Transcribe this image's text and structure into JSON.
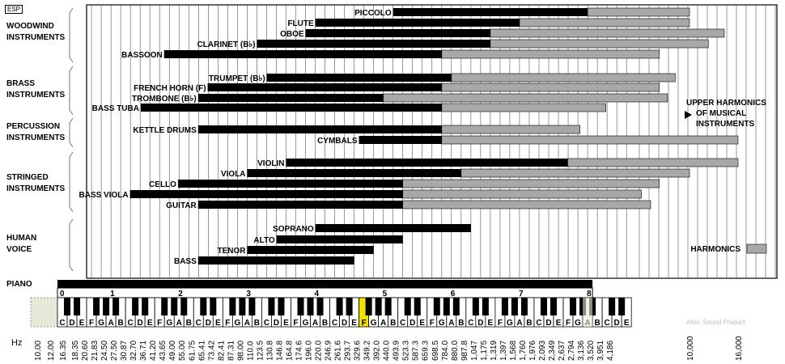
{
  "logo": "ESP",
  "credit": "Altec Sound Product",
  "hz_label": "Hz",
  "piano_label": "PIANO",
  "harmonics_label": "HARMONICS",
  "upper_note": [
    "UPPER HARMONICS",
    "OF MUSICAL",
    "INSTRUMENTS"
  ],
  "groups": [
    {
      "name": "WOODWIND INSTRUMENTS",
      "lines": [
        "WOODWIND",
        "INSTRUMENTS"
      ]
    },
    {
      "name": "BRASS INSTRUMENTS",
      "lines": [
        "BRASS",
        "INSTRUMENTS"
      ]
    },
    {
      "name": "PERCUSSION INSTRUMENTS",
      "lines": [
        "PERCUSSION",
        "INSTRUMENTS"
      ]
    },
    {
      "name": "STRINGED INSTRUMENTS",
      "lines": [
        "STRINGED",
        "INSTRUMENTS"
      ]
    },
    {
      "name": "HUMAN VOICE",
      "lines": [
        "HUMAN",
        "VOICE"
      ]
    }
  ],
  "colors": {
    "fundamental": "#000000",
    "harmonics": "#a8a8a8",
    "highlight": "#f2e000",
    "grid": "#000000"
  },
  "chart_data": {
    "type": "bar",
    "orientation": "horizontal",
    "x_scale": "log",
    "xlim": [
      10,
      20000
    ],
    "x_unit": "Hz",
    "series_names": [
      "fundamental",
      "harmonics"
    ],
    "instruments": [
      {
        "name": "PICCOLO",
        "group": "WOODWIND INSTRUMENTS",
        "low": 587,
        "high": 4186,
        "harm_high": 10000
      },
      {
        "name": "FLUTE",
        "group": "WOODWIND INSTRUMENTS",
        "low": 262,
        "high": 2093,
        "harm_high": 10000
      },
      {
        "name": "OBOE",
        "group": "WOODWIND INSTRUMENTS",
        "low": 247,
        "high": 1568,
        "harm_high": 14000
      },
      {
        "name": "CLARINET (B♭)",
        "group": "WOODWIND INSTRUMENTS",
        "low": 147,
        "high": 1568,
        "harm_high": 12000
      },
      {
        "name": "BASSOON",
        "group": "WOODWIND INSTRUMENTS",
        "low": 58,
        "high": 988,
        "harm_high": 8000
      },
      {
        "name": "TRUMPET (B♭)",
        "group": "BRASS INSTRUMENTS",
        "low": 165,
        "high": 1047,
        "harm_high": 9000
      },
      {
        "name": "FRENCH HORN (F)",
        "group": "BRASS INSTRUMENTS",
        "low": 87,
        "high": 988,
        "harm_high": 8000
      },
      {
        "name": "TROMBONE (B♭)",
        "group": "BRASS INSTRUMENTS",
        "low": 82,
        "high": 523,
        "harm_high": 8500
      },
      {
        "name": "BASS TUBA",
        "group": "BRASS INSTRUMENTS",
        "low": 44,
        "high": 988,
        "harm_high": 5200
      },
      {
        "name": "KETTLE DRUMS",
        "group": "PERCUSSION INSTRUMENTS",
        "low": 82,
        "high": 988,
        "harm_high": 4000
      },
      {
        "name": "CYMBALS",
        "group": "PERCUSSION INSTRUMENTS",
        "low": 415,
        "high": 988,
        "harm_high": 16000
      },
      {
        "name": "VIOLIN",
        "group": "STRINGED INSTRUMENTS",
        "low": 196,
        "high": 3500,
        "harm_high": 16000
      },
      {
        "name": "VIOLA",
        "group": "STRINGED INSTRUMENTS",
        "low": 131,
        "high": 1175,
        "harm_high": 10000
      },
      {
        "name": "CELLO",
        "group": "STRINGED INSTRUMENTS",
        "low": 65,
        "high": 659,
        "harm_high": 8000
      },
      {
        "name": "BASS VIOLA",
        "group": "STRINGED INSTRUMENTS",
        "low": 41,
        "high": 659,
        "harm_high": 7000
      },
      {
        "name": "GUITAR",
        "group": "STRINGED INSTRUMENTS",
        "low": 82,
        "high": 659,
        "harm_high": 7500
      },
      {
        "name": "SOPRANO",
        "group": "HUMAN VOICE",
        "low": 262,
        "high": 1319
      },
      {
        "name": "ALTO",
        "group": "HUMAN VOICE",
        "low": 175,
        "high": 659
      },
      {
        "name": "TENOR",
        "group": "HUMAN VOICE",
        "low": 131,
        "high": 494
      },
      {
        "name": "BASS",
        "group": "HUMAN VOICE",
        "low": 82,
        "high": 392
      }
    ],
    "harmonics_legend_label": "HARMONICS",
    "piano_range": [
      27.5,
      4186
    ],
    "octave_labels": [
      "0",
      "1",
      "2",
      "3",
      "4",
      "5",
      "6",
      "7",
      "8"
    ],
    "white_keys": [
      "C",
      "D",
      "E",
      "F",
      "G",
      "A",
      "B",
      "C",
      "D",
      "E",
      "F",
      "G",
      "A",
      "B",
      "C",
      "D",
      "E",
      "F",
      "G",
      "A",
      "B",
      "C",
      "D",
      "E",
      "F",
      "G",
      "A",
      "B",
      "C",
      "D",
      "E",
      "F",
      "G",
      "A",
      "B",
      "C",
      "D",
      "E",
      "F",
      "G",
      "A",
      "B",
      "C",
      "D",
      "E",
      "F",
      "G",
      "A",
      "B",
      "C",
      "D",
      "E",
      "F",
      "G",
      "A",
      "B",
      "C",
      "D",
      "E"
    ],
    "highlight_key": "A 440.0",
    "tick_labels": [
      "10.00",
      "12.00",
      "16.35",
      "18.35",
      "20.60",
      "21.83",
      "24.50",
      "27.50",
      "30.87",
      "32.70",
      "36.71",
      "41.20",
      "43.65",
      "49.00",
      "55.00",
      "61.75",
      "65.41",
      "73.42",
      "82.41",
      "87.31",
      "98.00",
      "110.0",
      "123.5",
      "130.8",
      "146.8",
      "164.8",
      "174.6",
      "196.0",
      "220.0",
      "246.9",
      "261.6",
      "293.7",
      "329.6",
      "349.2",
      "392.0",
      "440.0",
      "493.9",
      "523.3",
      "587.3",
      "659.3",
      "698.5",
      "784.0",
      "880.0",
      "987.8",
      "1,047",
      "1,175",
      "1,319",
      "1,397",
      "1,568",
      "1,760",
      "1,976",
      "2,093",
      "2,349",
      "2,637",
      "2,794",
      "3,136",
      "3,520",
      "3,951",
      "4,186",
      "10,000",
      "16,000"
    ]
  }
}
